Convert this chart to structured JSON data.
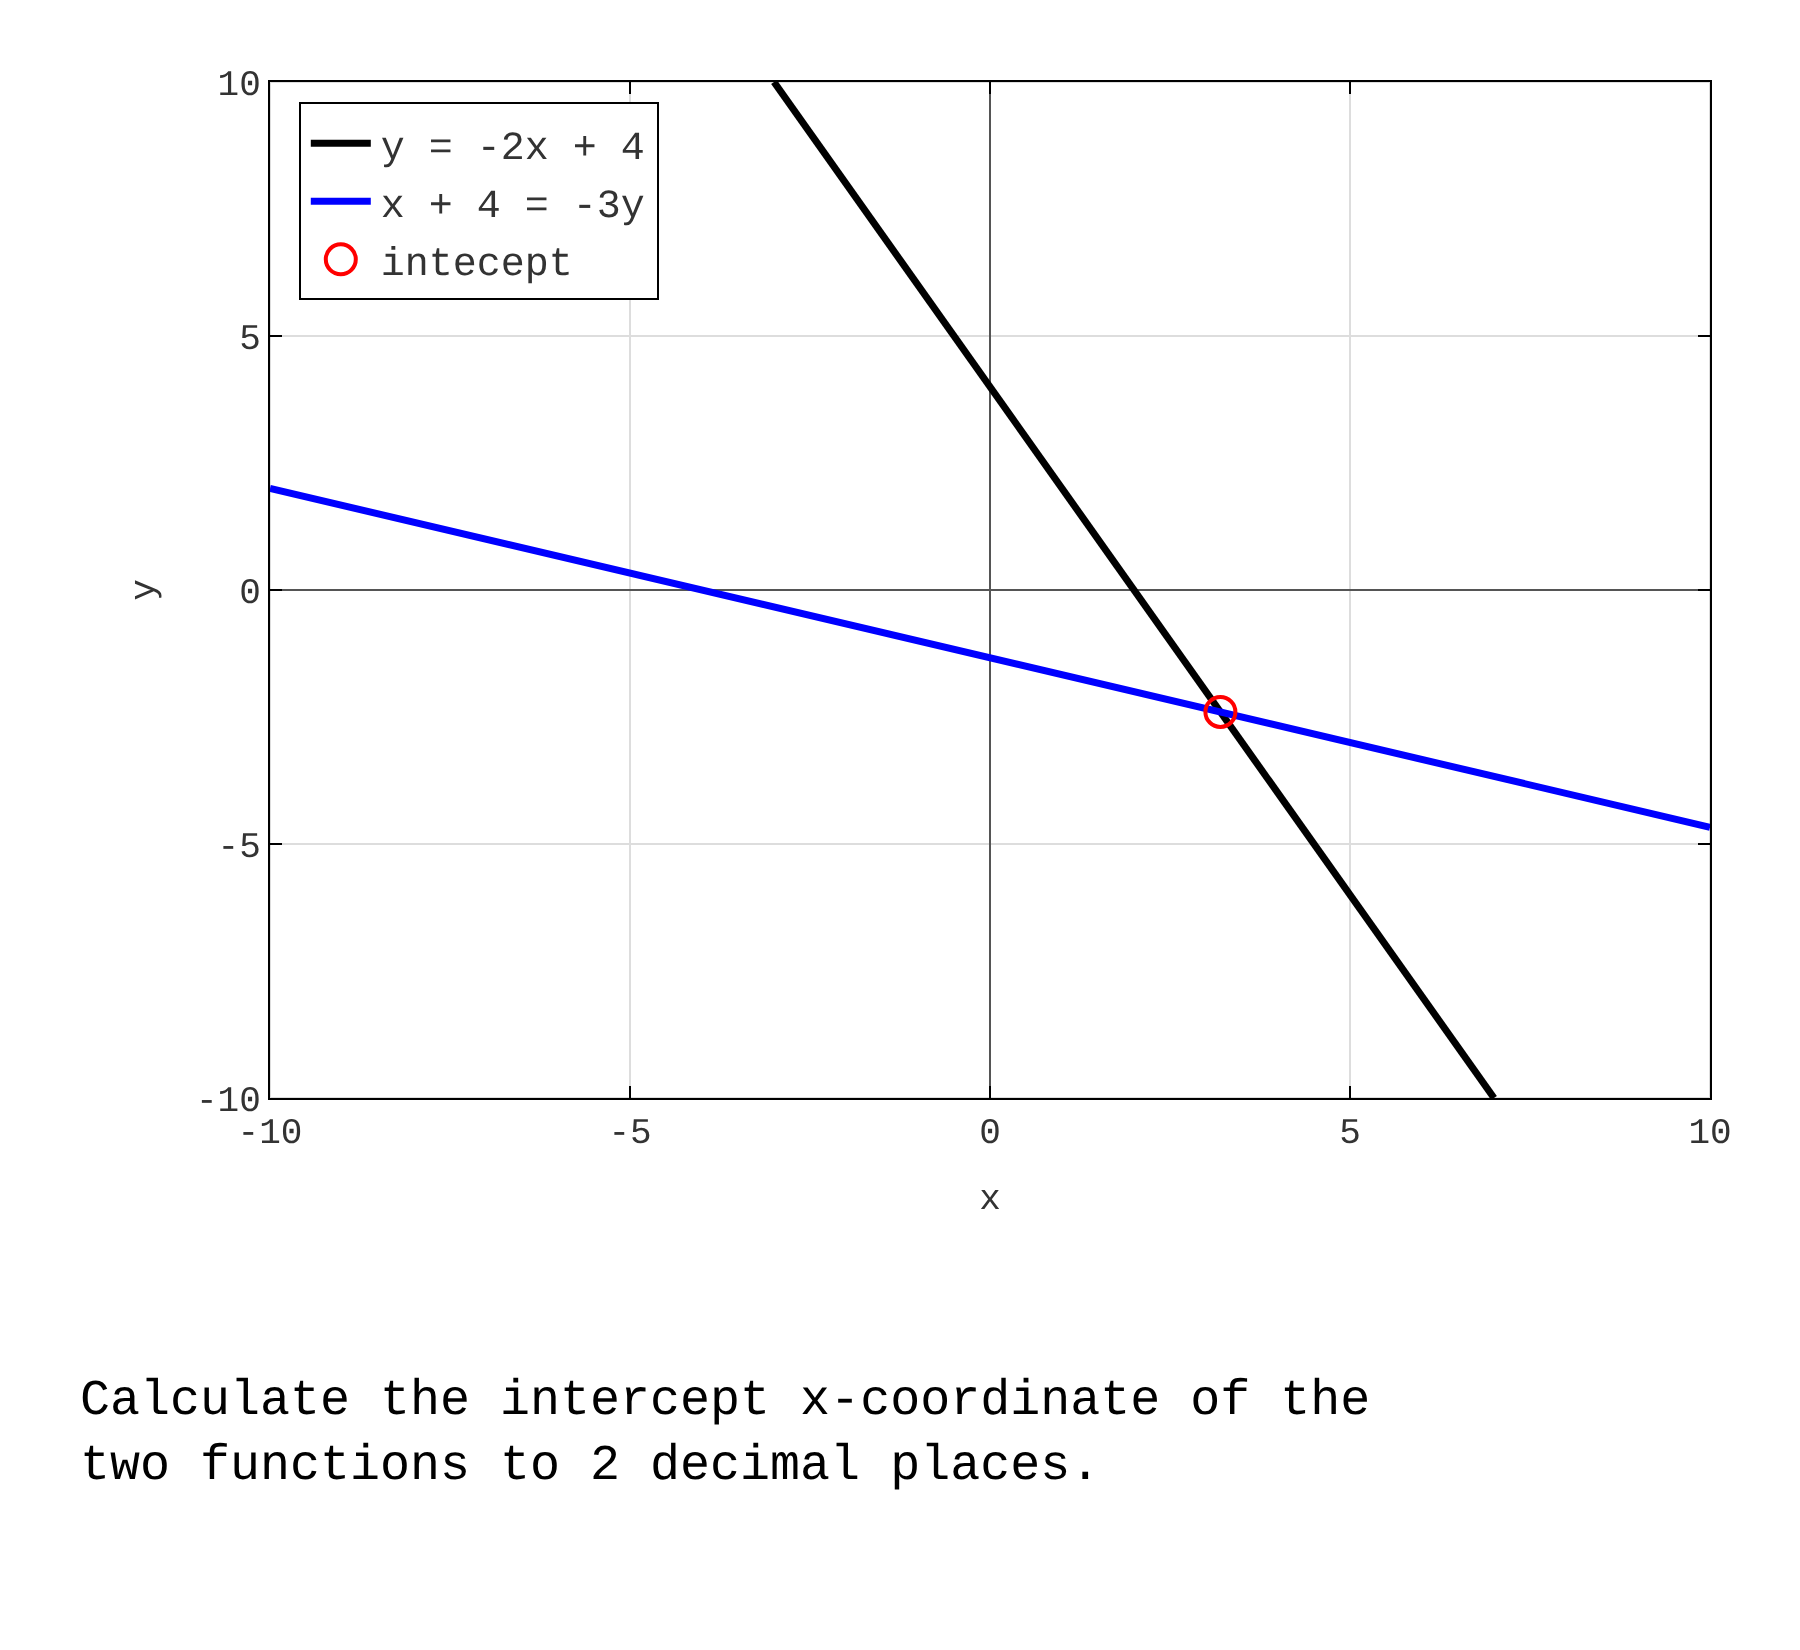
{
  "chart_data": {
    "type": "line",
    "xlabel": "x",
    "ylabel": "y",
    "xlim": [
      -10,
      10
    ],
    "ylim": [
      -10,
      10
    ],
    "xticks": [
      -10,
      -5,
      0,
      5,
      10
    ],
    "yticks": [
      -10,
      -5,
      0,
      5,
      10
    ],
    "grid": true,
    "legend": "top left",
    "series": [
      {
        "name": "y = -2x + 4",
        "color": "#000000",
        "line_style": "solid",
        "marker": "none",
        "x": [
          -3,
          7
        ],
        "values": [
          10,
          -10
        ]
      },
      {
        "name": "x + 4 = -3y",
        "color": "#0000ff",
        "line_style": "solid",
        "marker": "none",
        "x": [
          -10,
          10
        ],
        "values": [
          2,
          -4.67
        ]
      },
      {
        "name": "intecept",
        "type": "scatter",
        "color": "#ff0000",
        "marker": "circle",
        "x": [
          3.2
        ],
        "values": [
          -2.4
        ]
      }
    ],
    "annotations": [
      "Calculate the intercept x-coordinate of the\ntwo functions to 2 decimal places."
    ]
  }
}
